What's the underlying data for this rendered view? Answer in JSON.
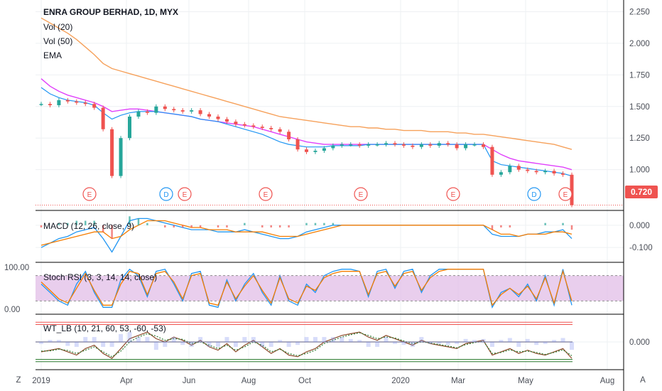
{
  "colors": {
    "up": "#26a69a",
    "down": "#ef5350",
    "ema_short": "#e040fb",
    "ema_mid": "#2196f3",
    "ema_long": "#f6a15b",
    "macd": "#2196f3",
    "signal": "#f57c00",
    "rsi_k": "#2196f3",
    "rsi_d": "#f57c00",
    "rsi_band": "#e1bee7",
    "wt_fast": "#8d4a2a",
    "wt_slow": "#2e7d32",
    "price_tag": "#ef5350",
    "grid": "#eef0f3"
  },
  "chart_data": [
    {
      "type": "candlestick",
      "title": "ENRA GROUP BERHAD, 1D, MYX",
      "legend": [
        "Vol (20)",
        "Vol (50)",
        "EMA"
      ],
      "x_tick_labels": [
        "2019",
        "Apr",
        "Jun",
        "Aug",
        "Oct",
        "2020",
        "Mar",
        "May",
        "Aug"
      ],
      "y_ticks": [
        "2.250",
        "2.000",
        "1.750",
        "1.500",
        "1.250",
        "1.000"
      ],
      "ylim": [
        0.7,
        2.32
      ],
      "last_price_label": "0.720",
      "events": [
        "E",
        "D",
        "E",
        "E",
        "E",
        "E",
        "D",
        "E"
      ],
      "close": [
        1.52,
        1.51,
        1.55,
        1.54,
        1.53,
        1.52,
        1.49,
        1.32,
        0.95,
        1.25,
        1.42,
        1.46,
        1.45,
        1.5,
        1.48,
        1.47,
        1.46,
        1.47,
        1.44,
        1.42,
        1.4,
        1.38,
        1.36,
        1.35,
        1.34,
        1.33,
        1.32,
        1.3,
        1.24,
        1.16,
        1.14,
        1.15,
        1.17,
        1.19,
        1.2,
        1.2,
        1.19,
        1.2,
        1.2,
        1.21,
        1.2,
        1.19,
        1.18,
        1.2,
        1.19,
        1.21,
        1.2,
        1.17,
        1.2,
        1.2,
        1.18,
        0.96,
        0.98,
        1.03,
        1.0,
        0.99,
        0.98,
        0.99,
        0.97,
        0.96,
        0.72
      ],
      "ema_short": [
        1.72,
        1.66,
        1.62,
        1.59,
        1.57,
        1.55,
        1.53,
        1.5,
        1.46,
        1.47,
        1.48,
        1.48,
        1.47,
        1.46,
        1.45,
        1.44,
        1.43,
        1.42,
        1.4,
        1.39,
        1.38,
        1.37,
        1.36,
        1.35,
        1.34,
        1.32,
        1.3,
        1.28,
        1.26,
        1.24,
        1.22,
        1.21,
        1.2,
        1.2,
        1.2,
        1.2,
        1.2,
        1.2,
        1.2,
        1.2,
        1.2,
        1.2,
        1.2,
        1.2,
        1.2,
        1.2,
        1.2,
        1.2,
        1.2,
        1.2,
        1.2,
        1.16,
        1.12,
        1.09,
        1.07,
        1.06,
        1.05,
        1.04,
        1.03,
        1.02,
        1.0
      ],
      "ema_mid": [
        1.65,
        1.6,
        1.57,
        1.55,
        1.54,
        1.53,
        1.51,
        1.45,
        1.4,
        1.43,
        1.45,
        1.46,
        1.46,
        1.46,
        1.45,
        1.44,
        1.43,
        1.42,
        1.4,
        1.39,
        1.38,
        1.36,
        1.34,
        1.32,
        1.3,
        1.28,
        1.25,
        1.22,
        1.2,
        1.19,
        1.18,
        1.18,
        1.18,
        1.19,
        1.19,
        1.19,
        1.19,
        1.2,
        1.2,
        1.2,
        1.2,
        1.2,
        1.2,
        1.2,
        1.2,
        1.2,
        1.2,
        1.2,
        1.2,
        1.2,
        1.2,
        1.07,
        1.04,
        1.03,
        1.02,
        1.01,
        1.0,
        0.99,
        0.98,
        0.97,
        0.95
      ],
      "ema_long": [
        2.2,
        2.16,
        2.12,
        2.08,
        2.03,
        1.97,
        1.91,
        1.84,
        1.8,
        1.78,
        1.76,
        1.74,
        1.72,
        1.7,
        1.68,
        1.66,
        1.64,
        1.62,
        1.6,
        1.58,
        1.56,
        1.54,
        1.52,
        1.5,
        1.48,
        1.46,
        1.44,
        1.42,
        1.41,
        1.4,
        1.39,
        1.38,
        1.37,
        1.36,
        1.35,
        1.34,
        1.34,
        1.33,
        1.33,
        1.32,
        1.32,
        1.31,
        1.31,
        1.31,
        1.3,
        1.3,
        1.3,
        1.29,
        1.29,
        1.28,
        1.28,
        1.27,
        1.26,
        1.25,
        1.24,
        1.23,
        1.22,
        1.21,
        1.2,
        1.18,
        1.16
      ]
    },
    {
      "type": "line",
      "title": "MACD (12, 26, close, 9)",
      "y_ticks": [
        "0.000",
        "-0.100"
      ],
      "ylim": [
        -0.16,
        0.06
      ],
      "macd": [
        -0.1,
        -0.08,
        -0.06,
        -0.05,
        -0.03,
        -0.02,
        -0.01,
        -0.06,
        -0.12,
        -0.05,
        0.02,
        0.03,
        0.03,
        0.02,
        0.01,
        0.0,
        -0.01,
        -0.02,
        -0.02,
        -0.02,
        -0.03,
        -0.03,
        -0.03,
        -0.02,
        -0.03,
        -0.04,
        -0.05,
        -0.06,
        -0.06,
        -0.05,
        -0.03,
        -0.02,
        -0.01,
        0.0,
        0.0,
        0.0,
        0.0,
        0.0,
        0.0,
        0.0,
        0.0,
        0.0,
        0.0,
        0.0,
        0.0,
        0.0,
        0.0,
        0.0,
        0.0,
        0.0,
        0.0,
        -0.04,
        -0.05,
        -0.05,
        -0.05,
        -0.04,
        -0.04,
        -0.03,
        -0.03,
        -0.02,
        -0.06
      ],
      "signal": [
        -0.09,
        -0.08,
        -0.07,
        -0.06,
        -0.05,
        -0.04,
        -0.03,
        -0.03,
        -0.06,
        -0.05,
        -0.02,
        0.0,
        0.02,
        0.02,
        0.02,
        0.01,
        0.0,
        -0.01,
        -0.01,
        -0.02,
        -0.02,
        -0.02,
        -0.03,
        -0.03,
        -0.03,
        -0.03,
        -0.04,
        -0.05,
        -0.05,
        -0.05,
        -0.04,
        -0.03,
        -0.02,
        -0.01,
        0.0,
        0.0,
        0.0,
        0.0,
        0.0,
        0.0,
        0.0,
        0.0,
        0.0,
        0.0,
        0.0,
        0.0,
        0.0,
        0.0,
        0.0,
        0.0,
        0.0,
        -0.02,
        -0.04,
        -0.04,
        -0.05,
        -0.04,
        -0.04,
        -0.04,
        -0.03,
        -0.03,
        -0.04
      ]
    },
    {
      "type": "line",
      "title": "Stoch RSI (3, 3, 14, 14, close)",
      "y_ticks": [
        "100.00",
        "0.00"
      ],
      "ylim": [
        -8,
        108
      ],
      "bands": [
        20,
        80
      ],
      "k": [
        60,
        40,
        20,
        10,
        60,
        90,
        40,
        5,
        5,
        70,
        95,
        80,
        30,
        90,
        95,
        60,
        20,
        85,
        90,
        10,
        5,
        70,
        20,
        60,
        85,
        40,
        10,
        80,
        20,
        10,
        60,
        40,
        80,
        90,
        95,
        95,
        90,
        30,
        90,
        95,
        50,
        90,
        95,
        40,
        80,
        95,
        95,
        95,
        95,
        95,
        95,
        5,
        40,
        50,
        30,
        60,
        20,
        80,
        10,
        95,
        10
      ],
      "d": [
        65,
        45,
        25,
        15,
        50,
        85,
        45,
        10,
        10,
        60,
        90,
        85,
        35,
        85,
        90,
        65,
        25,
        80,
        85,
        15,
        10,
        65,
        25,
        55,
        80,
        45,
        15,
        75,
        25,
        15,
        55,
        45,
        75,
        85,
        90,
        90,
        90,
        35,
        85,
        90,
        55,
        85,
        90,
        45,
        75,
        90,
        95,
        95,
        95,
        95,
        95,
        10,
        35,
        50,
        35,
        55,
        25,
        75,
        15,
        90,
        20
      ]
    },
    {
      "type": "line",
      "title": "WT_LB (10, 21, 60, 53, -60, -53)",
      "y_ticks": [
        "0.000"
      ],
      "ylim": [
        -80,
        80
      ],
      "levels": [
        60,
        53,
        -60,
        -53
      ],
      "wt_fast": [
        -30,
        -25,
        -20,
        -30,
        -40,
        -20,
        -10,
        -35,
        -50,
        -20,
        10,
        20,
        30,
        10,
        0,
        15,
        5,
        -10,
        5,
        -15,
        -25,
        -5,
        -30,
        -10,
        5,
        -15,
        -35,
        -20,
        -40,
        -45,
        -30,
        -20,
        0,
        10,
        20,
        25,
        30,
        15,
        5,
        20,
        10,
        0,
        -10,
        5,
        -5,
        -10,
        -15,
        -20,
        -5,
        0,
        5,
        -40,
        -30,
        -20,
        -35,
        -25,
        -35,
        -40,
        -30,
        -20,
        -50
      ],
      "wt_slow": [
        -28,
        -27,
        -22,
        -26,
        -35,
        -25,
        -15,
        -30,
        -45,
        -28,
        0,
        15,
        25,
        18,
        5,
        10,
        8,
        -5,
        0,
        -10,
        -20,
        -10,
        -25,
        -15,
        0,
        -10,
        -30,
        -22,
        -35,
        -42,
        -35,
        -25,
        -5,
        5,
        15,
        22,
        28,
        20,
        10,
        15,
        12,
        3,
        -5,
        0,
        -3,
        -8,
        -12,
        -18,
        -8,
        -2,
        2,
        -35,
        -32,
        -24,
        -30,
        -28,
        -32,
        -38,
        -32,
        -24,
        -42
      ]
    }
  ],
  "axis": {
    "zoom_button_label": "Z",
    "auto_button_label": "A"
  }
}
